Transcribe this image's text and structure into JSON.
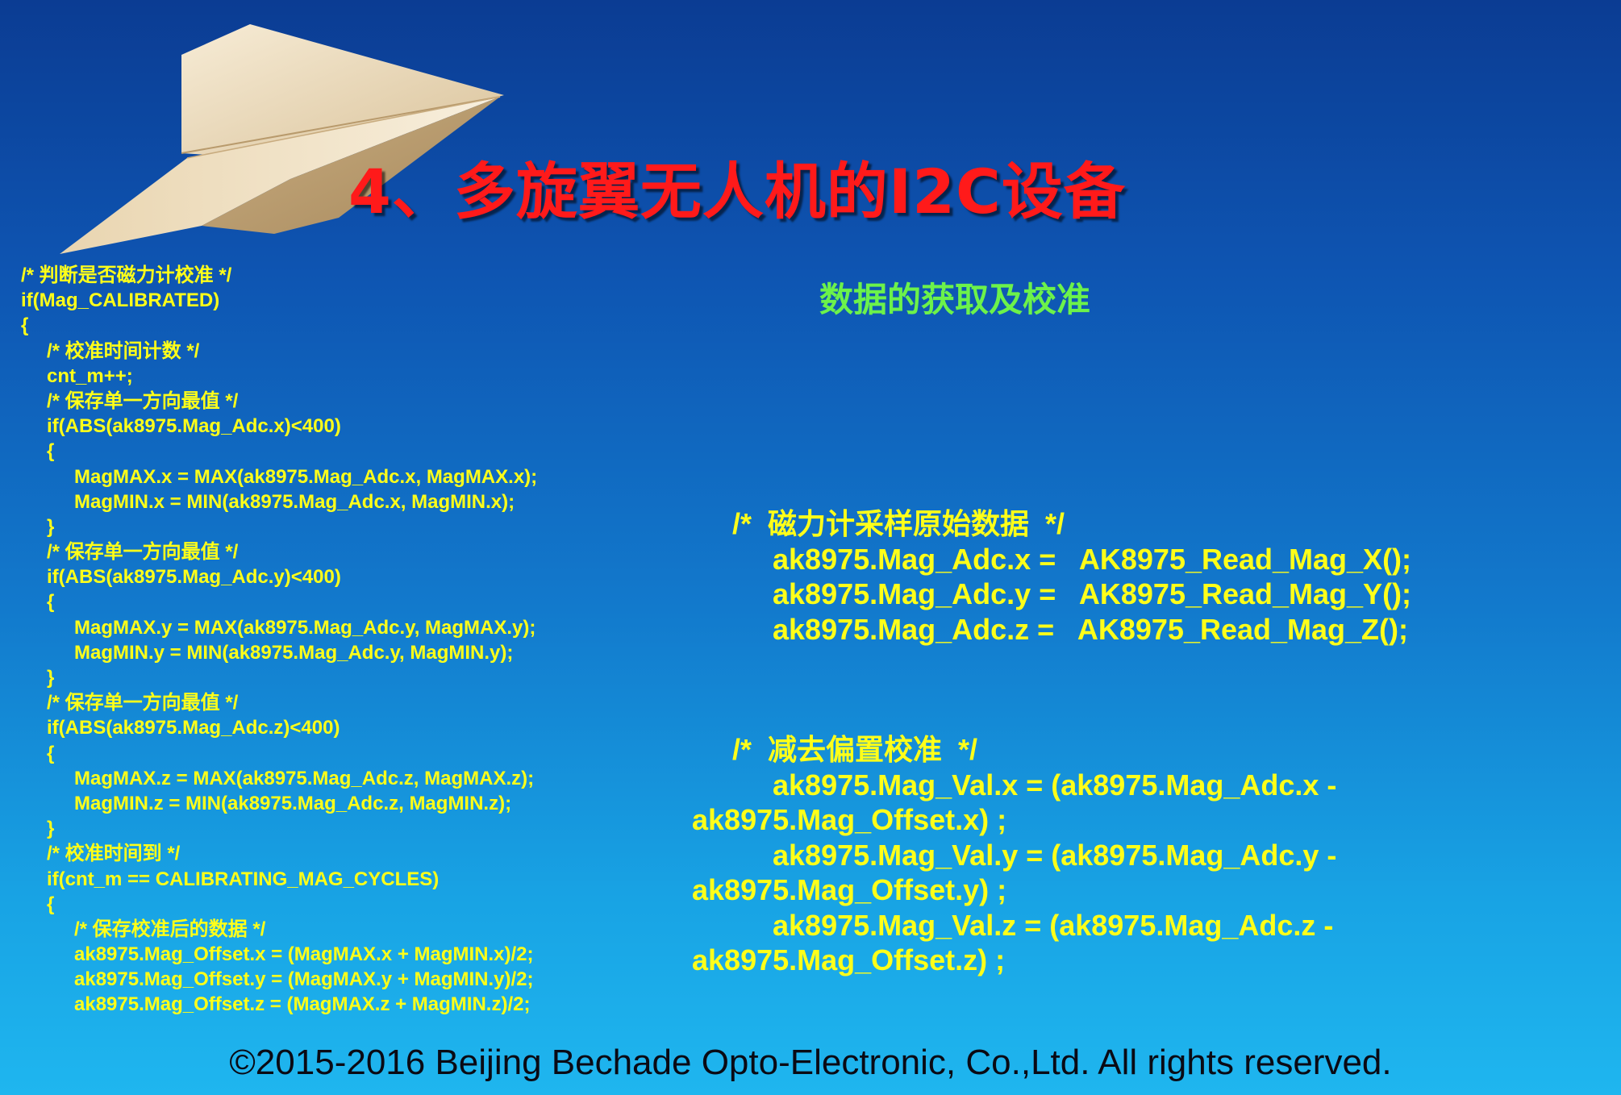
{
  "slide": {
    "title": "4、多旋翼无人机的I2C设备",
    "subtitle": "数据的获取及校准",
    "left_code": [
      {
        "indent": 0,
        "text": "/*  判断是否磁力计校准  */"
      },
      {
        "indent": 0,
        "text": "if(Mag_CALIBRATED)"
      },
      {
        "indent": 0,
        "text": "{"
      },
      {
        "indent": 1,
        "text": "/*  校准时间计数  */"
      },
      {
        "indent": 1,
        "text": "cnt_m++;"
      },
      {
        "indent": 1,
        "text": "/*  保存单一方向最值  */"
      },
      {
        "indent": 1,
        "text": "if(ABS(ak8975.Mag_Adc.x)<400)"
      },
      {
        "indent": 1,
        "text": "{"
      },
      {
        "indent": 2,
        "text": "MagMAX.x = MAX(ak8975.Mag_Adc.x, MagMAX.x);"
      },
      {
        "indent": 2,
        "text": "MagMIN.x = MIN(ak8975.Mag_Adc.x, MagMIN.x);"
      },
      {
        "indent": 1,
        "text": "}"
      },
      {
        "indent": 1,
        "text": "/*  保存单一方向最值  */"
      },
      {
        "indent": 1,
        "text": "if(ABS(ak8975.Mag_Adc.y)<400)"
      },
      {
        "indent": 1,
        "text": "{"
      },
      {
        "indent": 2,
        "text": "MagMAX.y = MAX(ak8975.Mag_Adc.y, MagMAX.y);"
      },
      {
        "indent": 2,
        "text": "MagMIN.y = MIN(ak8975.Mag_Adc.y, MagMIN.y);"
      },
      {
        "indent": 1,
        "text": "}"
      },
      {
        "indent": 1,
        "text": "/*  保存单一方向最值  */"
      },
      {
        "indent": 1,
        "text": "if(ABS(ak8975.Mag_Adc.z)<400)"
      },
      {
        "indent": 1,
        "text": "{"
      },
      {
        "indent": 2,
        "text": "MagMAX.z = MAX(ak8975.Mag_Adc.z, MagMAX.z);"
      },
      {
        "indent": 2,
        "text": "MagMIN.z = MIN(ak8975.Mag_Adc.z, MagMIN.z);"
      },
      {
        "indent": 1,
        "text": "}"
      },
      {
        "indent": 1,
        "text": "/*  校准时间到  */"
      },
      {
        "indent": 1,
        "text": "if(cnt_m == CALIBRATING_MAG_CYCLES)"
      },
      {
        "indent": 1,
        "text": "{"
      },
      {
        "indent": 2,
        "text": "/*  保存校准后的数据  */"
      },
      {
        "indent": 2,
        "text": "ak8975.Mag_Offset.x = (MagMAX.x + MagMIN.x)/2;"
      },
      {
        "indent": 2,
        "text": "ak8975.Mag_Offset.y = (MagMAX.y + MagMIN.y)/2;"
      },
      {
        "indent": 2,
        "text": "ak8975.Mag_Offset.z = (MagMAX.z + MagMIN.z)/2;"
      }
    ],
    "raw_block": {
      "comment": "/*  磁力计采样原始数据  */",
      "lines": [
        "ak8975.Mag_Adc.x =   AK8975_Read_Mag_X();",
        "ak8975.Mag_Adc.y =   AK8975_Read_Mag_Y();",
        "ak8975.Mag_Adc.z =   AK8975_Read_Mag_Z();"
      ]
    },
    "offset_block": {
      "comment": "/*  减去偏置校准  */",
      "lines": [
        {
          "first": "ak8975.Mag_Val.x = (ak8975.Mag_Adc.x -",
          "second": "ak8975.Mag_Offset.x) ;"
        },
        {
          "first": "ak8975.Mag_Val.y = (ak8975.Mag_Adc.y -",
          "second": "ak8975.Mag_Offset.y) ;"
        },
        {
          "first": "ak8975.Mag_Val.z = (ak8975.Mag_Adc.z -",
          "second": "ak8975.Mag_Offset.z) ;"
        }
      ]
    },
    "footer": "©2015-2016 Beijing Bechade Opto-Electronic, Co.,Ltd. All rights reserved."
  },
  "colors": {
    "title": "#ff1a1a",
    "subtitle": "#6cf24a",
    "code": "#ffff19",
    "footer": "#0a0a14",
    "background_top": "#0b3c93",
    "background_bottom": "#1fb6ef"
  }
}
